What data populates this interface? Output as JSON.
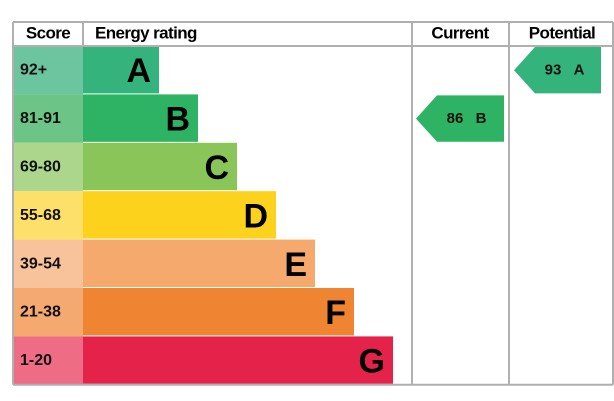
{
  "header": {
    "score": "Score",
    "rating": "Energy rating",
    "current": "Current",
    "potential": "Potential"
  },
  "bands": [
    {
      "score": "92+",
      "letter": "A",
      "color": "#34b37d",
      "light": "#6cc59f"
    },
    {
      "score": "81-91",
      "letter": "B",
      "color": "#2db363",
      "light": "#6cc587"
    },
    {
      "score": "69-80",
      "letter": "C",
      "color": "#8ac559",
      "light": "#abd68b"
    },
    {
      "score": "55-68",
      "letter": "D",
      "color": "#fcd21c",
      "light": "#fde06a"
    },
    {
      "score": "39-54",
      "letter": "E",
      "color": "#f5a96c",
      "light": "#f8c39a"
    },
    {
      "score": "21-38",
      "letter": "F",
      "color": "#ef8433",
      "light": "#f4a970"
    },
    {
      "score": "1-20",
      "letter": "G",
      "color": "#e4224a",
      "light": "#ee6c84"
    }
  ],
  "current": {
    "value": 86,
    "band": "B"
  },
  "potential": {
    "value": 93,
    "band": "A"
  }
}
